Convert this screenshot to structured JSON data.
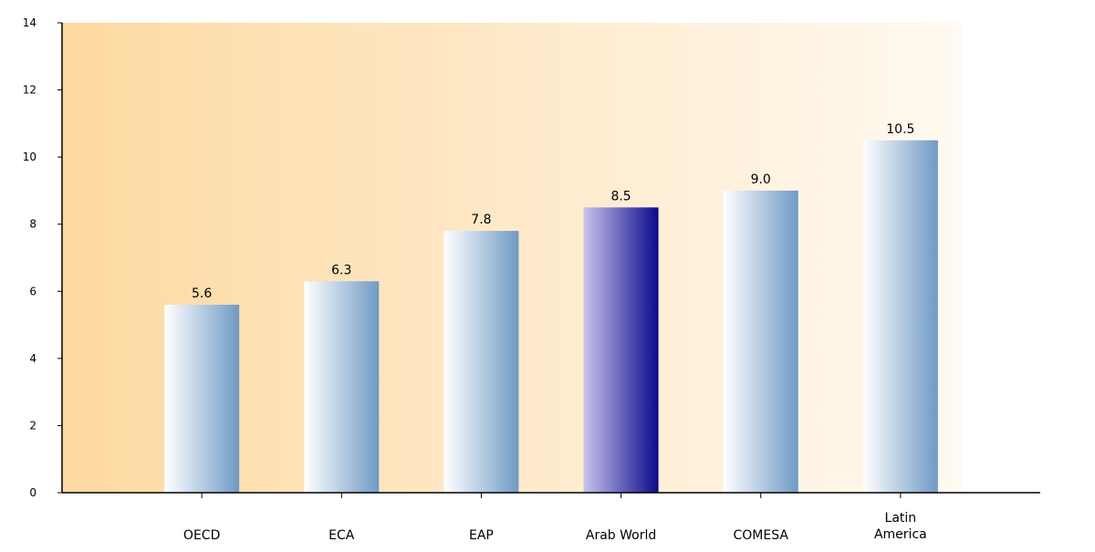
{
  "colors": {
    "bar_light_start": "#ffffff",
    "bar_light_end": "#6f9ac4",
    "bar_highlight_start": "#c8c3ec",
    "bar_highlight_end": "#0a0a8a",
    "plot_bg_start": "#fdd9a0",
    "plot_bg_end": "#fffaf2",
    "axis": "#000000"
  },
  "chart_data": {
    "type": "bar",
    "categories": [
      "OECD",
      "ECA",
      "EAP",
      "Arab World",
      "COMESA",
      "Latin America"
    ],
    "category_lines": [
      [
        "OECD"
      ],
      [
        "ECA"
      ],
      [
        "EAP"
      ],
      [
        "Arab World"
      ],
      [
        "COMESA"
      ],
      [
        "Latin",
        "America"
      ]
    ],
    "values": [
      5.6,
      6.3,
      7.8,
      8.5,
      9.0,
      10.5
    ],
    "value_labels": [
      "5.6",
      "6.3",
      "7.8",
      "8.5",
      "9.0",
      "10.5"
    ],
    "highlight_index": 3,
    "yticks": [
      "0",
      "2",
      "4",
      "6",
      "8",
      "10",
      "12",
      "14"
    ],
    "ylim": [
      0,
      14
    ],
    "title": "",
    "xlabel": "",
    "ylabel": "",
    "grid": false
  }
}
